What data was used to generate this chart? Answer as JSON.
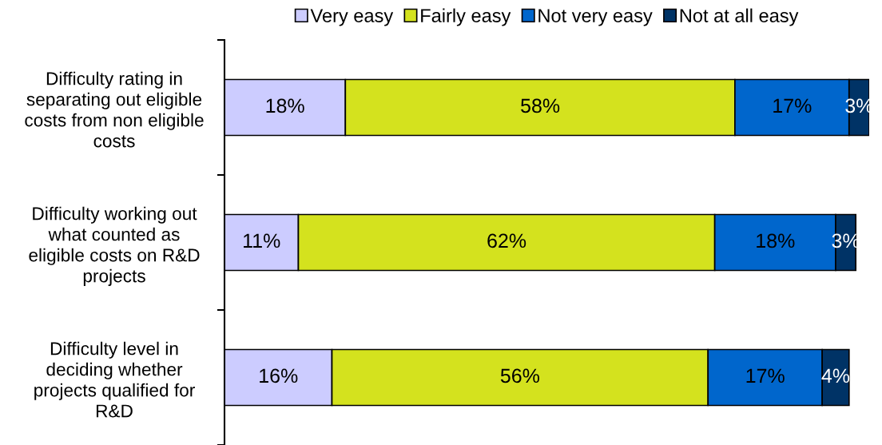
{
  "chart_data": {
    "type": "bar",
    "orientation": "horizontal",
    "stacked": true,
    "legend": "top",
    "tick_labels": "y",
    "categories": [
      "Difficulty rating in\nseparating out eligible\ncosts from non eligible\ncosts",
      "Difficulty working out\nwhat counted as\neligible costs on R&D\nprojects",
      "Difficulty level in\ndeciding whether\nprojects qualified for\nR&D"
    ],
    "series": [
      {
        "name": "Very easy",
        "color": "#ccccff",
        "values": [
          18,
          11,
          16
        ],
        "value_labels": [
          "18%",
          "11%",
          "16%"
        ]
      },
      {
        "name": "Fairly easy",
        "color": "#d4e21e",
        "values": [
          58,
          62,
          56
        ],
        "value_labels": [
          "58%",
          "62%",
          "56%"
        ]
      },
      {
        "name": "Not very easy",
        "color": "#0066cc",
        "values": [
          17,
          18,
          17
        ],
        "value_labels": [
          "17%",
          "18%",
          "17%"
        ]
      },
      {
        "name": "Not at all easy",
        "color": "#003366",
        "values": [
          3,
          3,
          4
        ],
        "value_labels": [
          "3%",
          "3%",
          "4%"
        ]
      }
    ]
  }
}
